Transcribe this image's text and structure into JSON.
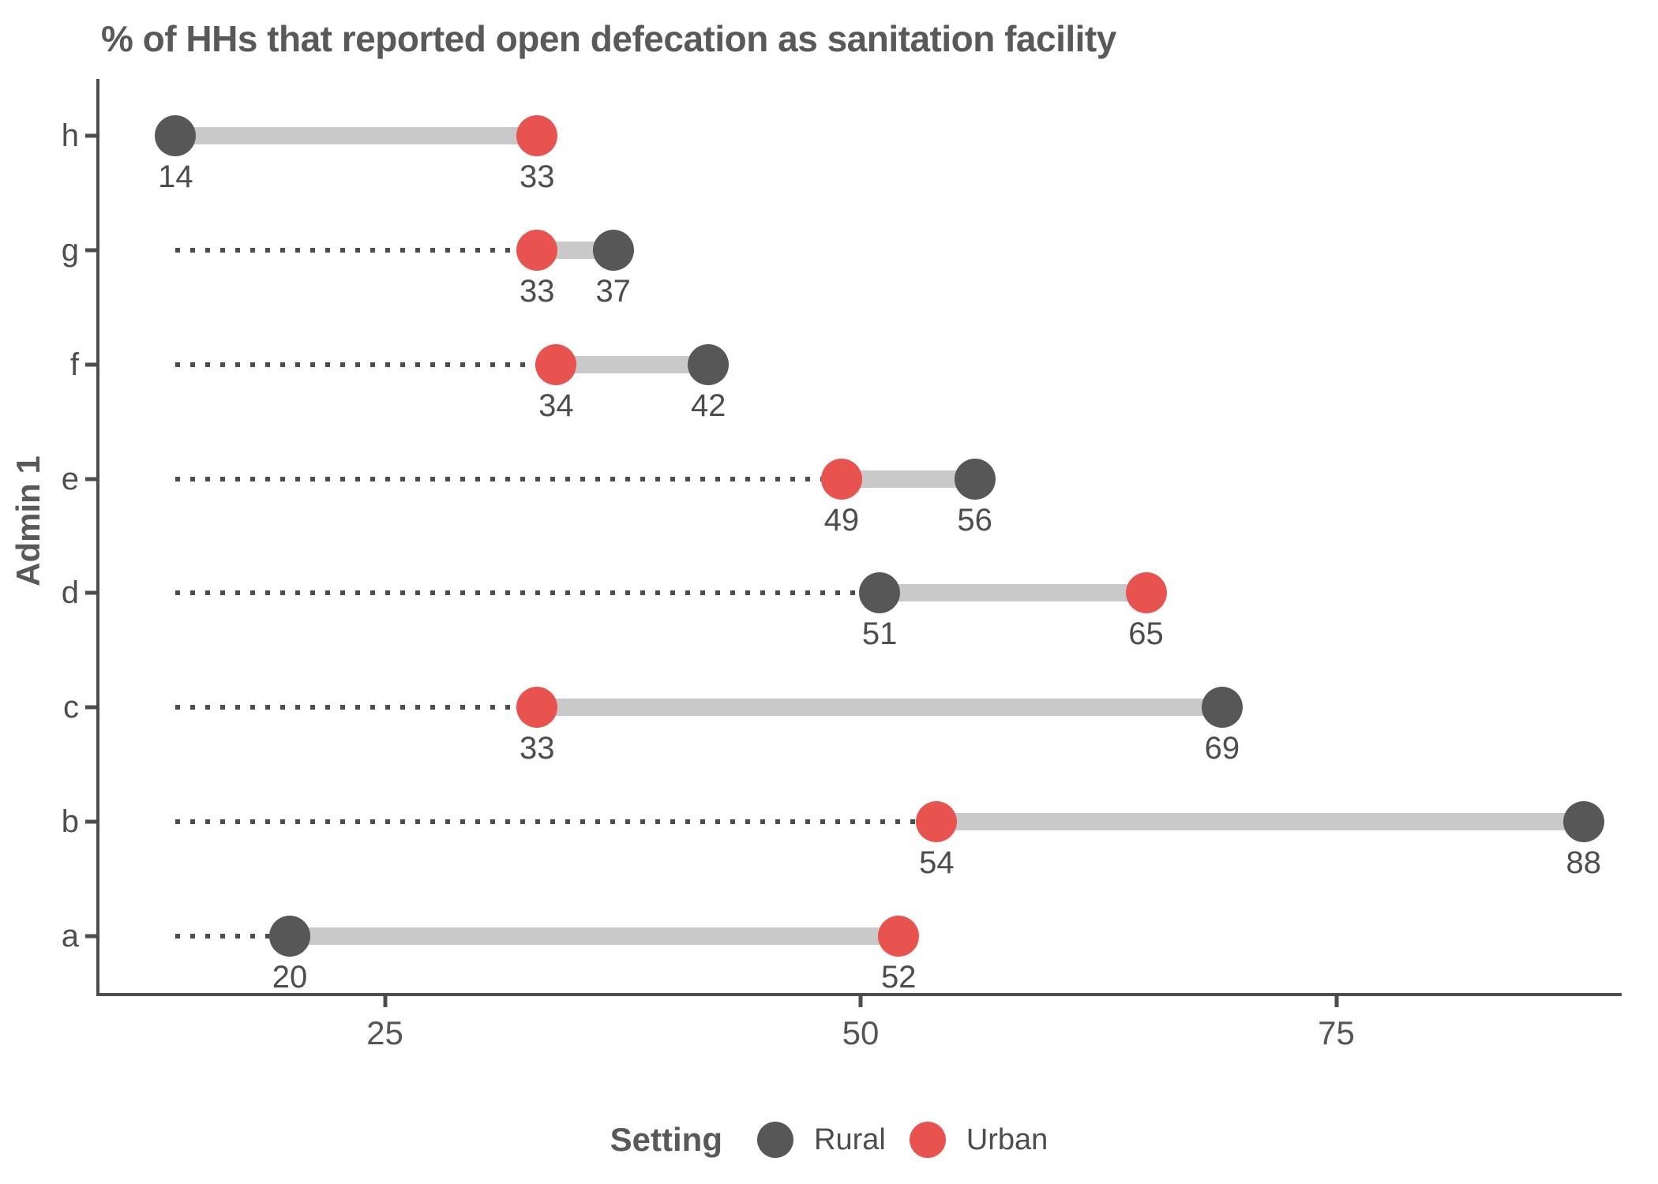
{
  "title": "% of HHs that reported open defecation as sanitation facility",
  "y_axis": {
    "label": "Admin 1"
  },
  "legend": {
    "title": "Setting",
    "items": [
      {
        "label": "Rural",
        "color": "#575757"
      },
      {
        "label": "Urban",
        "color": "#e8534f"
      }
    ]
  },
  "colors": {
    "rural": "#575757",
    "urban": "#e8534f",
    "connector": "#c9c9c9",
    "dotted_line": "#4d4d4d",
    "axis": "#4d4d4d",
    "text": "#4d4d4d",
    "title_text": "#595959"
  },
  "chart_data": {
    "type": "dumbbell",
    "orientation": "horizontal",
    "title": "% of HHs that reported open defecation as sanitation facility",
    "ylabel": "Admin 1",
    "legend_title": "Setting",
    "legend_position": "bottom",
    "categories": [
      "h",
      "g",
      "f",
      "e",
      "d",
      "c",
      "b",
      "a"
    ],
    "series": [
      {
        "name": "Rural",
        "color": "#575757",
        "values": [
          14,
          37,
          42,
          56,
          51,
          69,
          88,
          20
        ]
      },
      {
        "name": "Urban",
        "color": "#e8534f",
        "values": [
          33,
          33,
          34,
          49,
          65,
          33,
          54,
          52
        ]
      }
    ],
    "x_domain": [
      10,
      90
    ],
    "x_ticks": [
      25,
      50,
      75
    ],
    "dotted_baseline": 14,
    "grid": false,
    "point_labels_visible": true
  }
}
